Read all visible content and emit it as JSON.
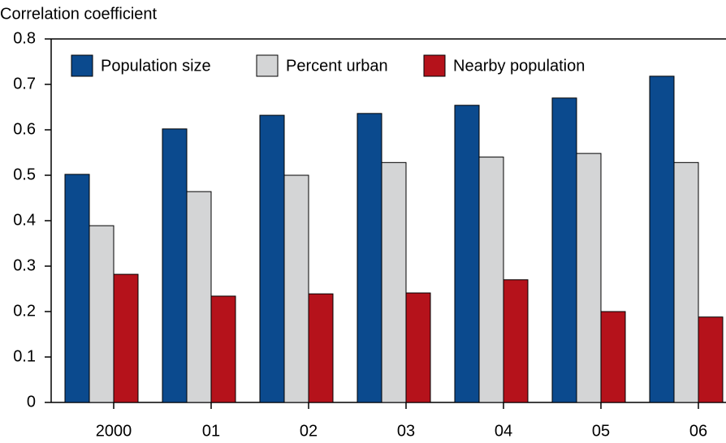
{
  "chart_data": {
    "type": "bar",
    "y_label": "Correlation coefficient",
    "categories": [
      "2000",
      "01",
      "02",
      "03",
      "04",
      "05",
      "06"
    ],
    "series": [
      {
        "name": "Population size",
        "color": "#0b4a8e",
        "values": [
          0.502,
          0.602,
          0.632,
          0.636,
          0.654,
          0.67,
          0.718
        ]
      },
      {
        "name": "Percent urban",
        "color": "#d4d5d6",
        "values": [
          0.389,
          0.464,
          0.5,
          0.528,
          0.54,
          0.548,
          0.528
        ]
      },
      {
        "name": "Nearby population",
        "color": "#b5121b",
        "values": [
          0.282,
          0.234,
          0.239,
          0.241,
          0.27,
          0.2,
          0.188
        ]
      }
    ],
    "ylim": [
      0,
      0.8
    ],
    "yticks": [
      0,
      0.1,
      0.2,
      0.3,
      0.4,
      0.5,
      0.6,
      0.7,
      0.8
    ],
    "legend": "upper left"
  }
}
